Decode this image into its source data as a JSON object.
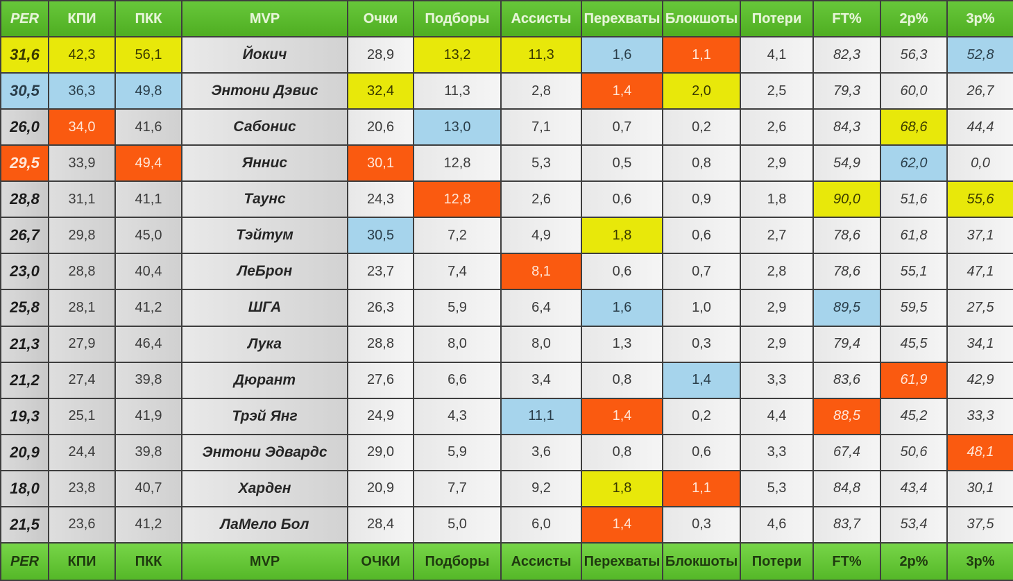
{
  "headers": [
    "PER",
    "КПИ",
    "ПКК",
    "MVP",
    "Очки",
    "Подборы",
    "Ассисты",
    "Перехваты",
    "Блокшоты",
    "Потери",
    "FT%",
    "2p%",
    "3p%"
  ],
  "footer": [
    "PER",
    "КПИ",
    "ПКК",
    "MVP",
    "ОЧКИ",
    "Подборы",
    "Ассисты",
    "Перехваты",
    "Блокшоты",
    "Потери",
    "FT%",
    "2p%",
    "3p%"
  ],
  "highlight_colors": {
    "yellow": "#e8e80a",
    "blue": "#a6d4ec",
    "orange": "#fa5a10"
  },
  "rows": [
    {
      "per": "31,6",
      "kpi": "42,3",
      "pkk": "56,1",
      "player": "Йокич",
      "points": "28,9",
      "rebounds": "13,2",
      "assists": "11,3",
      "steals": "1,6",
      "blocks": "1,1",
      "turnovers": "4,1",
      "ft_pct": "82,3",
      "p2_pct": "56,3",
      "p3_pct": "52,8"
    },
    {
      "per": "30,5",
      "kpi": "36,3",
      "pkk": "49,8",
      "player": "Энтони Дэвис",
      "points": "32,4",
      "rebounds": "11,3",
      "assists": "2,8",
      "steals": "1,4",
      "blocks": "2,0",
      "turnovers": "2,5",
      "ft_pct": "79,3",
      "p2_pct": "60,0",
      "p3_pct": "26,7"
    },
    {
      "per": "26,0",
      "kpi": "34,0",
      "pkk": "41,6",
      "player": "Сабонис",
      "points": "20,6",
      "rebounds": "13,0",
      "assists": "7,1",
      "steals": "0,7",
      "blocks": "0,2",
      "turnovers": "2,6",
      "ft_pct": "84,3",
      "p2_pct": "68,6",
      "p3_pct": "44,4"
    },
    {
      "per": "29,5",
      "kpi": "33,9",
      "pkk": "49,4",
      "player": "Яннис",
      "points": "30,1",
      "rebounds": "12,8",
      "assists": "5,3",
      "steals": "0,5",
      "blocks": "0,8",
      "turnovers": "2,9",
      "ft_pct": "54,9",
      "p2_pct": "62,0",
      "p3_pct": "0,0"
    },
    {
      "per": "28,8",
      "kpi": "31,1",
      "pkk": "41,1",
      "player": "Таунс",
      "points": "24,3",
      "rebounds": "12,8",
      "assists": "2,6",
      "steals": "0,6",
      "blocks": "0,9",
      "turnovers": "1,8",
      "ft_pct": "90,0",
      "p2_pct": "51,6",
      "p3_pct": "55,6"
    },
    {
      "per": "26,7",
      "kpi": "29,8",
      "pkk": "45,0",
      "player": "Тэйтум",
      "points": "30,5",
      "rebounds": "7,2",
      "assists": "4,9",
      "steals": "1,8",
      "blocks": "0,6",
      "turnovers": "2,7",
      "ft_pct": "78,6",
      "p2_pct": "61,8",
      "p3_pct": "37,1"
    },
    {
      "per": "23,0",
      "kpi": "28,8",
      "pkk": "40,4",
      "player": "ЛеБрон",
      "points": "23,7",
      "rebounds": "7,4",
      "assists": "8,1",
      "steals": "0,6",
      "blocks": "0,7",
      "turnovers": "2,8",
      "ft_pct": "78,6",
      "p2_pct": "55,1",
      "p3_pct": "47,1"
    },
    {
      "per": "25,8",
      "kpi": "28,1",
      "pkk": "41,2",
      "player": "ШГА",
      "points": "26,3",
      "rebounds": "5,9",
      "assists": "6,4",
      "steals": "1,6",
      "blocks": "1,0",
      "turnovers": "2,9",
      "ft_pct": "89,5",
      "p2_pct": "59,5",
      "p3_pct": "27,5"
    },
    {
      "per": "21,3",
      "kpi": "27,9",
      "pkk": "46,4",
      "player": "Лука",
      "points": "28,8",
      "rebounds": "8,0",
      "assists": "8,0",
      "steals": "1,3",
      "blocks": "0,3",
      "turnovers": "2,9",
      "ft_pct": "79,4",
      "p2_pct": "45,5",
      "p3_pct": "34,1"
    },
    {
      "per": "21,2",
      "kpi": "27,4",
      "pkk": "39,8",
      "player": "Дюрант",
      "points": "27,6",
      "rebounds": "6,6",
      "assists": "3,4",
      "steals": "0,8",
      "blocks": "1,4",
      "turnovers": "3,3",
      "ft_pct": "83,6",
      "p2_pct": "61,9",
      "p3_pct": "42,9"
    },
    {
      "per": "19,3",
      "kpi": "25,1",
      "pkk": "41,9",
      "player": "Трэй Янг",
      "points": "24,9",
      "rebounds": "4,3",
      "assists": "11,1",
      "steals": "1,4",
      "blocks": "0,2",
      "turnovers": "4,4",
      "ft_pct": "88,5",
      "p2_pct": "45,2",
      "p3_pct": "33,3"
    },
    {
      "per": "20,9",
      "kpi": "24,4",
      "pkk": "39,8",
      "player": "Энтони Эдвардс",
      "points": "29,0",
      "rebounds": "5,9",
      "assists": "3,6",
      "steals": "0,8",
      "blocks": "0,6",
      "turnovers": "3,3",
      "ft_pct": "67,4",
      "p2_pct": "50,6",
      "p3_pct": "48,1"
    },
    {
      "per": "18,0",
      "kpi": "23,8",
      "pkk": "40,7",
      "player": "Харден",
      "points": "20,9",
      "rebounds": "7,7",
      "assists": "9,2",
      "steals": "1,8",
      "blocks": "1,1",
      "turnovers": "5,3",
      "ft_pct": "84,8",
      "p2_pct": "43,4",
      "p3_pct": "30,1"
    },
    {
      "per": "21,5",
      "kpi": "23,6",
      "pkk": "41,2",
      "player": "ЛаМело Бол",
      "points": "28,4",
      "rebounds": "5,0",
      "assists": "6,0",
      "steals": "1,4",
      "blocks": "0,3",
      "turnovers": "4,6",
      "ft_pct": "83,7",
      "p2_pct": "53,4",
      "p3_pct": "37,5"
    }
  ],
  "highlights": [
    {
      "row": 0,
      "col": "per",
      "color": "yellow"
    },
    {
      "row": 0,
      "col": "kpi",
      "color": "yellow"
    },
    {
      "row": 0,
      "col": "pkk",
      "color": "yellow"
    },
    {
      "row": 0,
      "col": "rebounds",
      "color": "yellow"
    },
    {
      "row": 0,
      "col": "assists",
      "color": "yellow"
    },
    {
      "row": 0,
      "col": "steals",
      "color": "blue"
    },
    {
      "row": 0,
      "col": "blocks",
      "color": "orange"
    },
    {
      "row": 0,
      "col": "p3_pct",
      "color": "blue"
    },
    {
      "row": 1,
      "col": "per",
      "color": "blue"
    },
    {
      "row": 1,
      "col": "kpi",
      "color": "blue"
    },
    {
      "row": 1,
      "col": "pkk",
      "color": "blue"
    },
    {
      "row": 1,
      "col": "points",
      "color": "yellow"
    },
    {
      "row": 1,
      "col": "steals",
      "color": "orange"
    },
    {
      "row": 1,
      "col": "blocks",
      "color": "yellow"
    },
    {
      "row": 2,
      "col": "kpi",
      "color": "orange"
    },
    {
      "row": 2,
      "col": "rebounds",
      "color": "blue"
    },
    {
      "row": 2,
      "col": "p2_pct",
      "color": "yellow"
    },
    {
      "row": 3,
      "col": "per",
      "color": "orange"
    },
    {
      "row": 3,
      "col": "pkk",
      "color": "orange"
    },
    {
      "row": 3,
      "col": "points",
      "color": "orange"
    },
    {
      "row": 3,
      "col": "p2_pct",
      "color": "blue"
    },
    {
      "row": 4,
      "col": "rebounds",
      "color": "orange"
    },
    {
      "row": 4,
      "col": "ft_pct",
      "color": "yellow"
    },
    {
      "row": 4,
      "col": "p3_pct",
      "color": "yellow"
    },
    {
      "row": 5,
      "col": "points",
      "color": "blue"
    },
    {
      "row": 5,
      "col": "steals",
      "color": "yellow"
    },
    {
      "row": 6,
      "col": "assists",
      "color": "orange"
    },
    {
      "row": 7,
      "col": "steals",
      "color": "blue"
    },
    {
      "row": 7,
      "col": "ft_pct",
      "color": "blue"
    },
    {
      "row": 9,
      "col": "blocks",
      "color": "blue"
    },
    {
      "row": 9,
      "col": "p2_pct",
      "color": "orange"
    },
    {
      "row": 10,
      "col": "assists",
      "color": "blue"
    },
    {
      "row": 10,
      "col": "steals",
      "color": "orange"
    },
    {
      "row": 10,
      "col": "ft_pct",
      "color": "orange"
    },
    {
      "row": 11,
      "col": "p3_pct",
      "color": "orange"
    },
    {
      "row": 12,
      "col": "steals",
      "color": "yellow"
    },
    {
      "row": 12,
      "col": "blocks",
      "color": "orange"
    },
    {
      "row": 13,
      "col": "steals",
      "color": "orange"
    }
  ]
}
